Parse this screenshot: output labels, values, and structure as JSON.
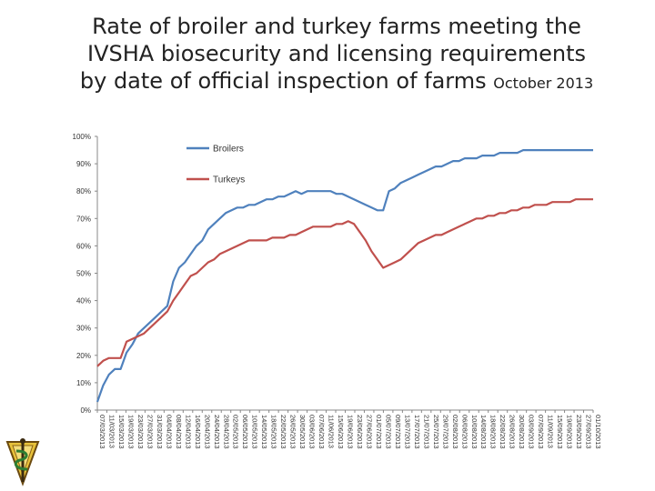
{
  "title": {
    "line1": "Rate of broiler and turkey farms meeting the",
    "line2": "IVSHA biosecurity and licensing requirements",
    "line3_main": "by date of official inspection of farms",
    "line3_small": "October 2013"
  },
  "logo": {
    "icon": "veterinary-caduceus-emblem"
  },
  "chart_data": {
    "type": "line",
    "title": "Rate of broiler and turkey farms meeting the IVSHA biosecurity and licensing requirements by date of official inspection of farms October 2013",
    "xlabel": "",
    "ylabel": "",
    "ylim": [
      0,
      100
    ],
    "yticks": [
      "0%",
      "10%",
      "20%",
      "30%",
      "40%",
      "50%",
      "60%",
      "70%",
      "80%",
      "90%",
      "100%"
    ],
    "grid": false,
    "legend_position": "top-right, inside plot",
    "x_tick_labels": [
      "07/03/2013",
      "11/03/2013",
      "15/03/2013",
      "19/03/2013",
      "23/03/2013",
      "27/03/2013",
      "31/03/2013",
      "04/04/2013",
      "08/04/2013",
      "12/04/2013",
      "16/04/2013",
      "20/04/2013",
      "24/04/2013",
      "28/04/2013",
      "02/05/2013",
      "06/05/2013",
      "10/05/2013",
      "14/05/2013",
      "18/05/2013",
      "22/05/2013",
      "26/05/2013",
      "30/05/2013",
      "03/06/2013",
      "07/06/2013",
      "11/06/2013",
      "15/06/2013",
      "19/06/2013",
      "23/06/2013",
      "27/06/2013",
      "01/07/2013",
      "05/07/2013",
      "09/07/2013",
      "13/07/2013",
      "17/07/2013",
      "21/07/2013",
      "25/07/2013",
      "29/07/2013",
      "02/08/2013",
      "06/08/2013",
      "10/08/2013",
      "14/08/2013",
      "18/08/2013",
      "22/08/2013",
      "26/08/2013",
      "30/08/2013",
      "03/09/2013",
      "07/09/2013",
      "11/09/2013",
      "15/09/2013",
      "19/09/2013",
      "23/09/2013",
      "27/09/2013",
      "01/10/2013"
    ],
    "series": [
      {
        "name": "Broilers",
        "color": "#4f81bd",
        "values": [
          3,
          9,
          13,
          15,
          15,
          21,
          24,
          28,
          30,
          32,
          34,
          36,
          38,
          47,
          52,
          54,
          57,
          60,
          62,
          66,
          68,
          70,
          72,
          73,
          74,
          74,
          75,
          75,
          76,
          77,
          77,
          78,
          78,
          79,
          80,
          79,
          80,
          80,
          80,
          80,
          80,
          79,
          79,
          78,
          77,
          76,
          75,
          74,
          73,
          73,
          80,
          81,
          83,
          84,
          85,
          86,
          87,
          88,
          89,
          89,
          90,
          91,
          91,
          92,
          92,
          92,
          93,
          93,
          93,
          94,
          94,
          94,
          94,
          95,
          95,
          95,
          95,
          95,
          95,
          95,
          95,
          95,
          95,
          95,
          95,
          95
        ]
      },
      {
        "name": "Turkeys",
        "color": "#c0504d",
        "values": [
          16,
          18,
          19,
          19,
          19,
          25,
          26,
          27,
          28,
          30,
          32,
          34,
          36,
          40,
          43,
          46,
          49,
          50,
          52,
          54,
          55,
          57,
          58,
          59,
          60,
          61,
          62,
          62,
          62,
          62,
          63,
          63,
          63,
          64,
          64,
          65,
          66,
          67,
          67,
          67,
          67,
          68,
          68,
          69,
          68,
          65,
          62,
          58,
          55,
          52,
          53,
          54,
          55,
          57,
          59,
          61,
          62,
          63,
          64,
          64,
          65,
          66,
          67,
          68,
          69,
          70,
          70,
          71,
          71,
          72,
          72,
          73,
          73,
          74,
          74,
          75,
          75,
          75,
          76,
          76,
          76,
          76,
          77,
          77,
          77,
          77
        ]
      }
    ]
  }
}
